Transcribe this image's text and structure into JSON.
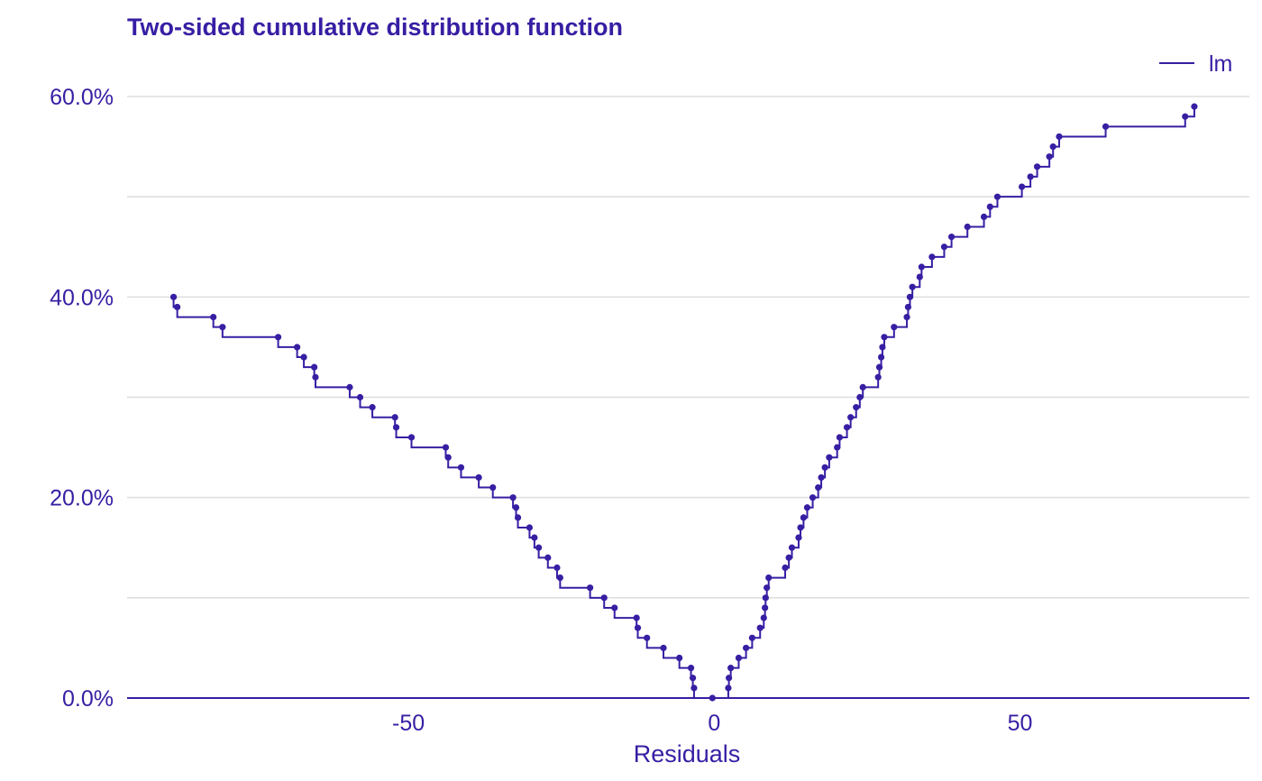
{
  "chart_data": {
    "type": "line",
    "title": "Two-sided cumulative distribution function",
    "xlabel": "Residuals",
    "ylabel": "",
    "xlim": [
      -96,
      87.5
    ],
    "ylim": [
      0,
      0.6
    ],
    "x_ticks": [
      -50,
      0,
      50
    ],
    "x_tick_labels": [
      "-50",
      "0",
      "50"
    ],
    "y_ticks": [
      0,
      0.2,
      0.4,
      0.6
    ],
    "y_tick_labels": [
      "0.0%",
      "20.0%",
      "40.0%",
      "60.0%"
    ],
    "y_minor_ticks": [
      0.1,
      0.3,
      0.5
    ],
    "grid": true,
    "legend_position": "top-right",
    "step": true,
    "colors": {
      "series": "#371ea3",
      "grid": "#dddddd",
      "text": "#371ea3"
    },
    "series": [
      {
        "name": "lm",
        "negative": [
          [
            -0.3,
            0.0
          ],
          [
            -3.3,
            0.01
          ],
          [
            -3.5,
            0.02
          ],
          [
            -3.8,
            0.03
          ],
          [
            -5.7,
            0.04
          ],
          [
            -8.3,
            0.05
          ],
          [
            -11.0,
            0.06
          ],
          [
            -12.5,
            0.07
          ],
          [
            -12.7,
            0.08
          ],
          [
            -16.3,
            0.09
          ],
          [
            -18.0,
            0.1
          ],
          [
            -20.3,
            0.11
          ],
          [
            -25.2,
            0.12
          ],
          [
            -25.7,
            0.13
          ],
          [
            -27.2,
            0.14
          ],
          [
            -28.7,
            0.15
          ],
          [
            -29.4,
            0.16
          ],
          [
            -30.2,
            0.17
          ],
          [
            -32.1,
            0.18
          ],
          [
            -32.4,
            0.19
          ],
          [
            -32.9,
            0.2
          ],
          [
            -36.2,
            0.21
          ],
          [
            -38.5,
            0.22
          ],
          [
            -41.4,
            0.23
          ],
          [
            -43.5,
            0.24
          ],
          [
            -43.9,
            0.25
          ],
          [
            -49.5,
            0.26
          ],
          [
            -52.0,
            0.27
          ],
          [
            -52.2,
            0.28
          ],
          [
            -55.9,
            0.29
          ],
          [
            -57.9,
            0.3
          ],
          [
            -59.6,
            0.31
          ],
          [
            -65.2,
            0.32
          ],
          [
            -65.4,
            0.33
          ],
          [
            -67.1,
            0.34
          ],
          [
            -68.2,
            0.35
          ],
          [
            -71.3,
            0.36
          ],
          [
            -80.4,
            0.37
          ],
          [
            -81.9,
            0.38
          ],
          [
            -87.8,
            0.39
          ],
          [
            -88.4,
            0.4
          ]
        ],
        "positive": [
          [
            2.3,
            0.01
          ],
          [
            2.4,
            0.02
          ],
          [
            2.7,
            0.03
          ],
          [
            4.0,
            0.04
          ],
          [
            5.2,
            0.05
          ],
          [
            6.2,
            0.06
          ],
          [
            7.5,
            0.07
          ],
          [
            8.1,
            0.08
          ],
          [
            8.3,
            0.09
          ],
          [
            8.4,
            0.1
          ],
          [
            8.6,
            0.11
          ],
          [
            8.9,
            0.12
          ],
          [
            11.6,
            0.13
          ],
          [
            12.2,
            0.14
          ],
          [
            12.7,
            0.15
          ],
          [
            13.8,
            0.16
          ],
          [
            14.1,
            0.17
          ],
          [
            14.6,
            0.18
          ],
          [
            15.2,
            0.19
          ],
          [
            16.1,
            0.2
          ],
          [
            17.0,
            0.21
          ],
          [
            17.5,
            0.22
          ],
          [
            18.1,
            0.23
          ],
          [
            18.8,
            0.24
          ],
          [
            20.1,
            0.25
          ],
          [
            20.5,
            0.26
          ],
          [
            21.7,
            0.27
          ],
          [
            22.3,
            0.28
          ],
          [
            23.2,
            0.29
          ],
          [
            23.8,
            0.3
          ],
          [
            24.3,
            0.31
          ],
          [
            26.8,
            0.32
          ],
          [
            27.0,
            0.33
          ],
          [
            27.3,
            0.34
          ],
          [
            27.5,
            0.35
          ],
          [
            27.8,
            0.36
          ],
          [
            29.4,
            0.37
          ],
          [
            31.5,
            0.38
          ],
          [
            31.7,
            0.39
          ],
          [
            32.0,
            0.4
          ],
          [
            32.4,
            0.41
          ],
          [
            33.6,
            0.42
          ],
          [
            33.9,
            0.43
          ],
          [
            35.6,
            0.44
          ],
          [
            37.6,
            0.45
          ],
          [
            38.8,
            0.46
          ],
          [
            41.4,
            0.47
          ],
          [
            44.1,
            0.48
          ],
          [
            45.1,
            0.49
          ],
          [
            46.3,
            0.5
          ],
          [
            50.3,
            0.51
          ],
          [
            51.7,
            0.52
          ],
          [
            52.8,
            0.53
          ],
          [
            54.8,
            0.54
          ],
          [
            55.4,
            0.55
          ],
          [
            56.4,
            0.56
          ],
          [
            64.0,
            0.57
          ],
          [
            77.0,
            0.58
          ],
          [
            78.5,
            0.59
          ]
        ]
      }
    ]
  }
}
